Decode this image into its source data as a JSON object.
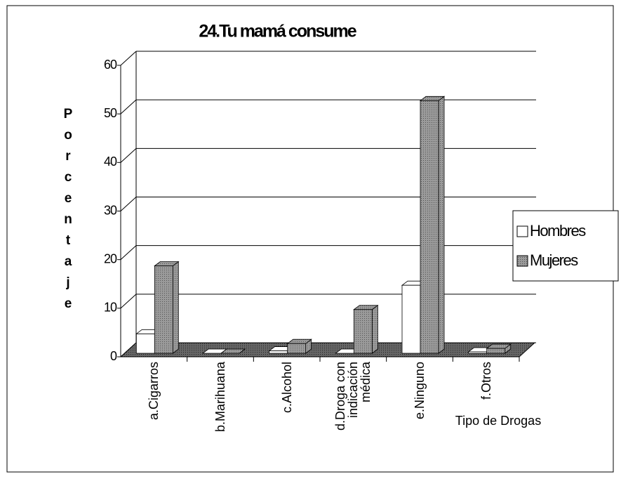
{
  "chart_data": {
    "type": "bar3d",
    "title": "24.Tu mamá consume",
    "y_label": "Porcentaje",
    "x_label": "Tipo de Drogas",
    "categories": [
      "a.Cigarros",
      "b.Marihuana",
      "c.Alcohol",
      "d.Droga con indicación médica",
      "e.Ninguno",
      "f.Otros"
    ],
    "series": [
      {
        "name": "Hombres",
        "color": "#ffffff",
        "values": [
          4,
          0,
          0.5,
          0,
          14,
          0.3
        ]
      },
      {
        "name": "Mujeres",
        "color": "#8c8c8c",
        "values": [
          18,
          0,
          2,
          9,
          52,
          1
        ]
      }
    ],
    "ylim": [
      0,
      60
    ],
    "yticks": [
      0,
      10,
      20,
      30,
      40,
      50,
      60
    ],
    "grid": true,
    "legend": "right"
  }
}
